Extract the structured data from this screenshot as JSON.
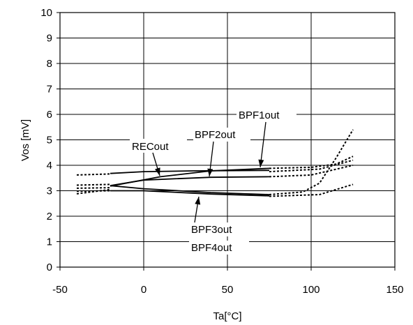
{
  "chart_data": {
    "type": "line",
    "xlabel": "Ta[°C]",
    "ylabel": "Vos [mV]",
    "xlim": [
      -50,
      150
    ],
    "ylim": [
      0,
      10
    ],
    "x_ticks": [
      "-50",
      "0",
      "50",
      "100",
      "150"
    ],
    "y_ticks": [
      "0",
      "1",
      "2",
      "3",
      "4",
      "5",
      "6",
      "7",
      "8",
      "9",
      "10"
    ],
    "grid": true,
    "series": [
      {
        "name": "RECout",
        "style": "solid",
        "x": [
          -20,
          0,
          30,
          75
        ],
        "y": [
          3.68,
          3.75,
          3.78,
          3.8
        ]
      },
      {
        "name": "BPF2out",
        "style": "solid",
        "x": [
          -20,
          0,
          40,
          75
        ],
        "y": [
          3.2,
          3.42,
          3.53,
          3.55
        ]
      },
      {
        "name": "BPF1out",
        "style": "solid",
        "x": [
          -20,
          10,
          40,
          75
        ],
        "y": [
          3.18,
          3.55,
          3.78,
          3.88
        ]
      },
      {
        "name": "BPF3out",
        "style": "solid",
        "x": [
          -20,
          0,
          40,
          75
        ],
        "y": [
          3.2,
          3.08,
          2.93,
          2.85
        ]
      },
      {
        "name": "BPF4out",
        "style": "solid",
        "x": [
          -20,
          0,
          40,
          75
        ],
        "y": [
          3.0,
          3.0,
          2.87,
          2.8
        ]
      },
      {
        "style": "dotted",
        "x": [
          -40,
          -20
        ],
        "y": [
          3.62,
          3.66
        ]
      },
      {
        "style": "dotted",
        "x": [
          -40,
          -20
        ],
        "y": [
          3.22,
          3.25
        ]
      },
      {
        "style": "dotted",
        "x": [
          -40,
          -20
        ],
        "y": [
          3.1,
          3.12
        ]
      },
      {
        "style": "dotted",
        "x": [
          -40,
          -20
        ],
        "y": [
          2.98,
          3.0
        ]
      },
      {
        "style": "dotted",
        "x": [
          -40,
          -20
        ],
        "y": [
          2.88,
          3.05
        ]
      },
      {
        "style": "dotted",
        "x": [
          75,
          100,
          115,
          125
        ],
        "y": [
          3.88,
          3.92,
          4.05,
          4.35
        ]
      },
      {
        "style": "dotted",
        "x": [
          75,
          105,
          125
        ],
        "y": [
          3.75,
          3.85,
          4.2
        ]
      },
      {
        "style": "dotted",
        "x": [
          75,
          100,
          125
        ],
        "y": [
          3.55,
          3.62,
          4.0
        ]
      },
      {
        "style": "dotted",
        "x": [
          75,
          95,
          105,
          115,
          125
        ],
        "y": [
          2.85,
          2.95,
          3.3,
          4.3,
          5.4
        ]
      },
      {
        "style": "dotted",
        "x": [
          75,
          105,
          125
        ],
        "y": [
          2.78,
          2.85,
          3.25
        ]
      }
    ],
    "annotations": [
      {
        "text": "RECout",
        "target_x": 10,
        "target_y": 3.55
      },
      {
        "text": "BPF2out",
        "target_x": 40,
        "target_y": 3.5
      },
      {
        "text": "BPF1out",
        "target_x": 70,
        "target_y": 3.9
      },
      {
        "text": "BPF3out",
        "target_x": 33,
        "target_y": 2.9
      },
      {
        "text": "BPF4out",
        "target_x": null,
        "target_y": null
      }
    ]
  }
}
